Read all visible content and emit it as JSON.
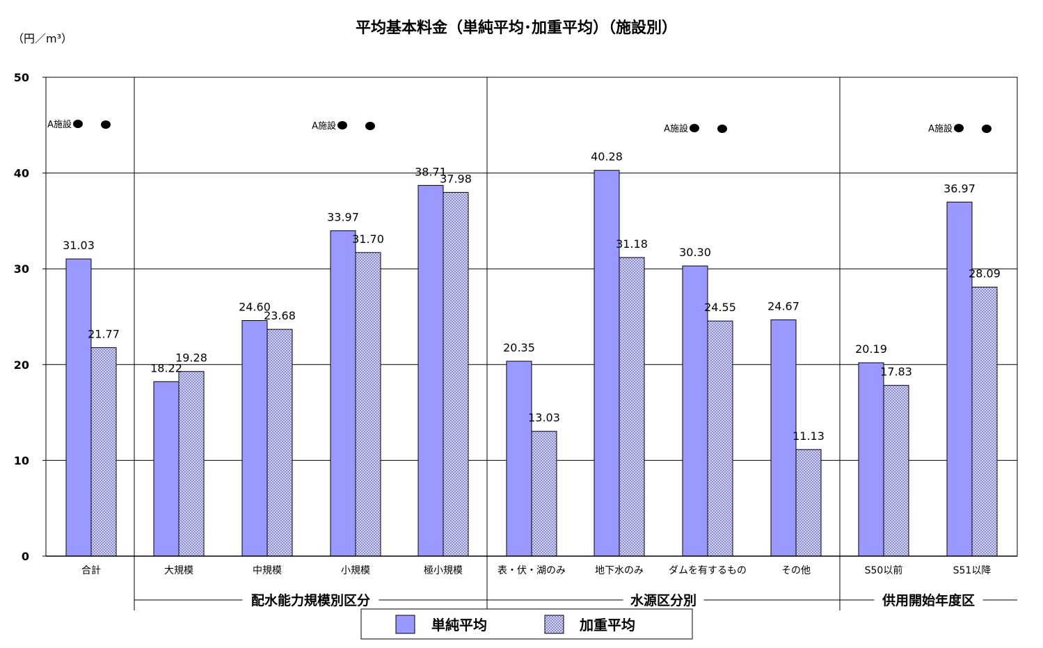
{
  "colors": {
    "simple": "#9999ff",
    "weighted_fill": "#e8e8ff",
    "weighted_hatch": "#7c7ccc",
    "axis": "#000000",
    "grid": "#000000"
  },
  "chart_data": {
    "type": "bar",
    "title": "平均基本料金（単純平均･加重平均）（施設別）",
    "ylabel": "（円／m³）",
    "ylim": [
      0,
      50
    ],
    "yticks": [
      "0",
      "10",
      "20",
      "30",
      "40",
      "50"
    ],
    "grid": true,
    "legend_position": "bottom",
    "categories": [
      "合計",
      "大規模",
      "中規模",
      "小規模",
      "極小規模",
      "表・伏・湖のみ",
      "地下水のみ",
      "ダムを有するもの",
      "その他",
      "S50以前",
      "S51以降"
    ],
    "series": [
      {
        "name": "単純平均",
        "values": [
          31.03,
          18.22,
          24.6,
          33.97,
          38.71,
          20.35,
          40.28,
          30.3,
          24.67,
          20.19,
          36.97
        ],
        "labels": [
          "31.03",
          "18.22",
          "24.60",
          "33.97",
          "38.71",
          "20.35",
          "40.28",
          "30.30",
          "24.67",
          "20.19",
          "36.97"
        ]
      },
      {
        "name": "加重平均",
        "values": [
          21.77,
          19.28,
          23.68,
          31.7,
          37.98,
          13.03,
          31.18,
          24.55,
          11.13,
          17.83,
          28.09
        ],
        "labels": [
          "21.77",
          "19.28",
          "23.68",
          "31.70",
          "37.98",
          "13.03",
          "31.18",
          "24.55",
          "11.13",
          "17.83",
          "28.09"
        ]
      }
    ],
    "groups": [
      {
        "label": "配水能力規模別区分",
        "first": 1,
        "last": 4
      },
      {
        "label": "水源区分別",
        "first": 5,
        "last": 8
      },
      {
        "label": "供用開始年度区",
        "first": 9,
        "last": 10
      }
    ],
    "markers": [
      {
        "label": "A施設",
        "category": 0
      },
      {
        "label": "A施設",
        "category": 3
      },
      {
        "label": "A施設",
        "category": 7
      },
      {
        "label": "A施設",
        "category": 10
      }
    ]
  }
}
